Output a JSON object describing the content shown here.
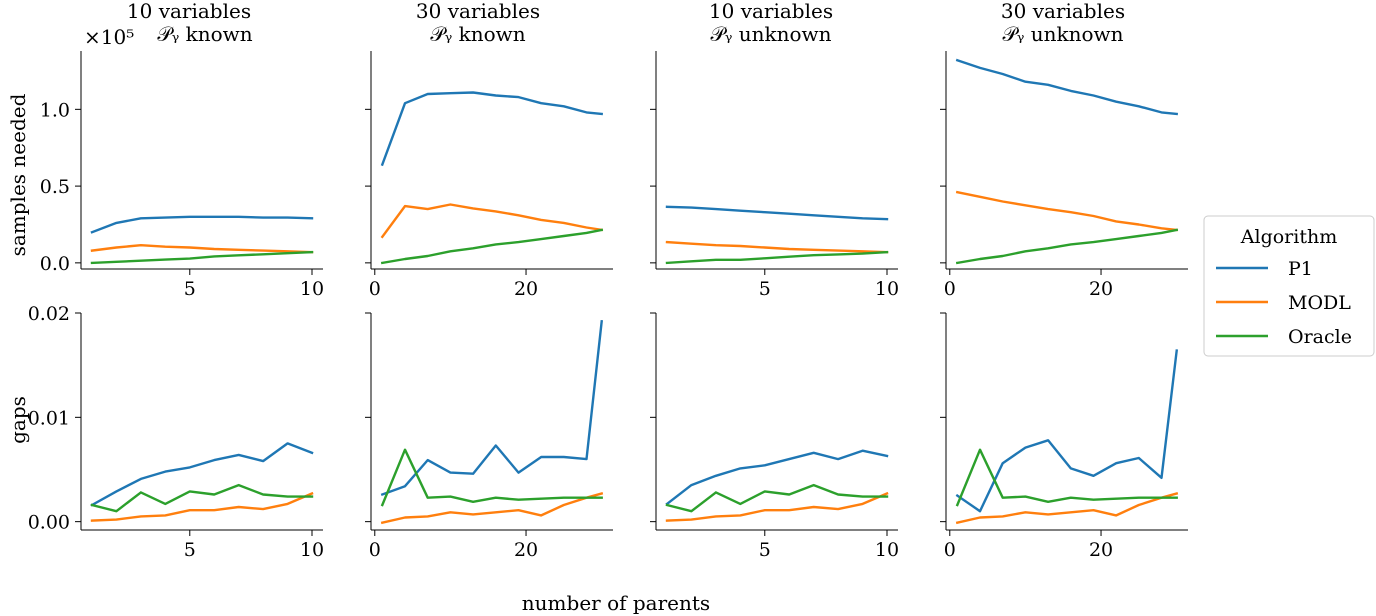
{
  "figure": {
    "xlabel": "number of parents",
    "ylabel_top": "samples needed",
    "ylabel_bottom": "gaps",
    "offset_text": "×10⁵",
    "legend": {
      "title": "Algorithm",
      "entries": [
        {
          "name": "P1",
          "color": "#1f77b4"
        },
        {
          "name": "MODL",
          "color": "#ff7f0e"
        },
        {
          "name": "Oracle",
          "color": "#2ca02c"
        }
      ]
    },
    "columns": [
      {
        "title_line1": "10 variables",
        "title_line2": "𝒫ᵧ known"
      },
      {
        "title_line1": "30 variables",
        "title_line2": "𝒫ᵧ known"
      },
      {
        "title_line1": "10 variables",
        "title_line2": "𝒫ᵧ unknown"
      },
      {
        "title_line1": "30 variables",
        "title_line2": "𝒫ᵧ unknown"
      }
    ]
  },
  "chart_data": [
    {
      "type": "line",
      "row": "samples needed",
      "column": "10 variables, P_Y known",
      "x": [
        1,
        2,
        3,
        4,
        5,
        6,
        7,
        8,
        9,
        10
      ],
      "xlim": [
        0.55,
        10.45
      ],
      "xticks": [
        5,
        10
      ],
      "ylim": [
        -0.04,
        1.38
      ],
      "yticks": [
        0.0,
        0.5,
        1.0
      ],
      "ytick_labels": [
        "0.0",
        "0.5",
        "1.0"
      ],
      "y_unit": "×10^5",
      "series": [
        {
          "name": "P1",
          "values": [
            0.2,
            0.26,
            0.29,
            0.295,
            0.3,
            0.3,
            0.3,
            0.295,
            0.295,
            0.29
          ]
        },
        {
          "name": "MODL",
          "values": [
            0.08,
            0.1,
            0.115,
            0.105,
            0.1,
            0.09,
            0.085,
            0.08,
            0.075,
            0.07
          ]
        },
        {
          "name": "Oracle",
          "values": [
            0.0,
            0.007,
            0.014,
            0.021,
            0.028,
            0.042,
            0.049,
            0.056,
            0.063,
            0.07
          ]
        }
      ]
    },
    {
      "type": "line",
      "row": "samples needed",
      "column": "30 variables, P_Y known",
      "x": [
        1,
        4,
        7,
        10,
        13,
        16,
        19,
        22,
        25,
        28,
        30
      ],
      "xlim": [
        -0.5,
        31.5
      ],
      "xticks": [
        0,
        20
      ],
      "ylim": [
        -0.04,
        1.38
      ],
      "yticks": [
        0.0,
        0.5,
        1.0
      ],
      "ytick_labels": [],
      "series": [
        {
          "name": "P1",
          "values": [
            0.64,
            1.04,
            1.1,
            1.105,
            1.11,
            1.09,
            1.08,
            1.04,
            1.02,
            0.98,
            0.97
          ]
        },
        {
          "name": "MODL",
          "values": [
            0.17,
            0.37,
            0.35,
            0.38,
            0.355,
            0.335,
            0.31,
            0.28,
            0.26,
            0.23,
            0.215
          ]
        },
        {
          "name": "Oracle",
          "values": [
            0.0,
            0.025,
            0.045,
            0.075,
            0.095,
            0.12,
            0.135,
            0.155,
            0.175,
            0.195,
            0.215
          ]
        }
      ]
    },
    {
      "type": "line",
      "row": "samples needed",
      "column": "10 variables, P_Y unknown",
      "x": [
        1,
        2,
        3,
        4,
        5,
        6,
        7,
        8,
        9,
        10
      ],
      "xlim": [
        0.55,
        10.45
      ],
      "xticks": [
        5,
        10
      ],
      "ylim": [
        -0.04,
        1.38
      ],
      "yticks": [
        0.0,
        0.5,
        1.0
      ],
      "ytick_labels": [],
      "series": [
        {
          "name": "P1",
          "values": [
            0.365,
            0.36,
            0.35,
            0.34,
            0.33,
            0.32,
            0.31,
            0.3,
            0.29,
            0.285
          ]
        },
        {
          "name": "MODL",
          "values": [
            0.135,
            0.125,
            0.115,
            0.11,
            0.1,
            0.09,
            0.085,
            0.08,
            0.075,
            0.07
          ]
        },
        {
          "name": "Oracle",
          "values": [
            0.0,
            0.01,
            0.02,
            0.02,
            0.03,
            0.04,
            0.05,
            0.055,
            0.06,
            0.07
          ]
        }
      ]
    },
    {
      "type": "line",
      "row": "samples needed",
      "column": "30 variables, P_Y unknown",
      "x": [
        1,
        4,
        7,
        10,
        13,
        16,
        19,
        22,
        25,
        28,
        30
      ],
      "xlim": [
        -0.5,
        31.5
      ],
      "xticks": [
        0,
        20
      ],
      "ylim": [
        -0.04,
        1.38
      ],
      "yticks": [
        0.0,
        0.5,
        1.0
      ],
      "ytick_labels": [],
      "series": [
        {
          "name": "P1",
          "values": [
            1.32,
            1.27,
            1.23,
            1.18,
            1.16,
            1.12,
            1.09,
            1.05,
            1.02,
            0.98,
            0.97
          ]
        },
        {
          "name": "MODL",
          "values": [
            0.46,
            0.43,
            0.4,
            0.375,
            0.35,
            0.33,
            0.305,
            0.27,
            0.25,
            0.225,
            0.215
          ]
        },
        {
          "name": "Oracle",
          "values": [
            0.0,
            0.025,
            0.045,
            0.075,
            0.095,
            0.12,
            0.135,
            0.155,
            0.175,
            0.195,
            0.215
          ]
        }
      ]
    },
    {
      "type": "line",
      "row": "gaps",
      "column": "10 variables, P_Y known",
      "x": [
        1,
        2,
        3,
        4,
        5,
        6,
        7,
        8,
        9,
        10
      ],
      "xlim": [
        0.55,
        10.45
      ],
      "xticks": [
        5,
        10
      ],
      "ylim": [
        -0.0008,
        0.02
      ],
      "yticks": [
        0.0,
        0.01,
        0.02
      ],
      "ytick_labels": [
        "0.00",
        "0.01",
        "0.02"
      ],
      "series": [
        {
          "name": "P1",
          "values": [
            0.0016,
            0.0029,
            0.0041,
            0.0048,
            0.0052,
            0.0059,
            0.0064,
            0.0058,
            0.0075,
            0.0066
          ]
        },
        {
          "name": "MODL",
          "values": [
            0.0001,
            0.0002,
            0.0005,
            0.0006,
            0.0011,
            0.0011,
            0.0014,
            0.0012,
            0.0017,
            0.0027
          ]
        },
        {
          "name": "Oracle",
          "values": [
            0.0016,
            0.001,
            0.0028,
            0.0017,
            0.0029,
            0.0026,
            0.0035,
            0.0026,
            0.0024,
            0.0024
          ]
        }
      ]
    },
    {
      "type": "line",
      "row": "gaps",
      "column": "30 variables, P_Y known",
      "x": [
        1,
        4,
        7,
        10,
        13,
        16,
        19,
        22,
        25,
        28,
        30
      ],
      "xlim": [
        -0.5,
        31.5
      ],
      "xticks": [
        0,
        20
      ],
      "ylim": [
        -0.0008,
        0.02
      ],
      "yticks": [
        0.0,
        0.01,
        0.02
      ],
      "ytick_labels": [],
      "series": [
        {
          "name": "P1",
          "values": [
            0.0026,
            0.0034,
            0.0059,
            0.0047,
            0.0046,
            0.0073,
            0.0047,
            0.0062,
            0.0062,
            0.006,
            0.0192
          ]
        },
        {
          "name": "MODL",
          "values": [
            -0.0001,
            0.0004,
            0.0005,
            0.0009,
            0.0007,
            0.0009,
            0.0011,
            0.0006,
            0.0016,
            0.0023,
            0.0027
          ]
        },
        {
          "name": "Oracle",
          "values": [
            0.0016,
            0.0069,
            0.0023,
            0.0024,
            0.0019,
            0.0023,
            0.0021,
            0.0022,
            0.0023,
            0.0023,
            0.0023
          ]
        }
      ]
    },
    {
      "type": "line",
      "row": "gaps",
      "column": "10 variables, P_Y unknown",
      "x": [
        1,
        2,
        3,
        4,
        5,
        6,
        7,
        8,
        9,
        10
      ],
      "xlim": [
        0.55,
        10.45
      ],
      "xticks": [
        5,
        10
      ],
      "ylim": [
        -0.0008,
        0.02
      ],
      "yticks": [
        0.0,
        0.01,
        0.02
      ],
      "ytick_labels": [],
      "series": [
        {
          "name": "P1",
          "values": [
            0.0017,
            0.0035,
            0.0044,
            0.0051,
            0.0054,
            0.006,
            0.0066,
            0.006,
            0.0068,
            0.0063
          ]
        },
        {
          "name": "MODL",
          "values": [
            0.0001,
            0.0002,
            0.0005,
            0.0006,
            0.0011,
            0.0011,
            0.0014,
            0.0012,
            0.0017,
            0.0027
          ]
        },
        {
          "name": "Oracle",
          "values": [
            0.0016,
            0.001,
            0.0028,
            0.0017,
            0.0029,
            0.0026,
            0.0035,
            0.0026,
            0.0024,
            0.0024
          ]
        }
      ]
    },
    {
      "type": "line",
      "row": "gaps",
      "column": "30 variables, P_Y unknown",
      "x": [
        1,
        4,
        7,
        10,
        13,
        16,
        19,
        22,
        25,
        28,
        30
      ],
      "xlim": [
        -0.5,
        31.5
      ],
      "xticks": [
        0,
        20
      ],
      "ylim": [
        -0.0008,
        0.02
      ],
      "yticks": [
        0.0,
        0.01,
        0.02
      ],
      "ytick_labels": [],
      "series": [
        {
          "name": "P1",
          "values": [
            0.0025,
            0.001,
            0.0056,
            0.0071,
            0.0078,
            0.0051,
            0.0044,
            0.0056,
            0.0061,
            0.0042,
            0.0164
          ]
        },
        {
          "name": "MODL",
          "values": [
            -0.0001,
            0.0004,
            0.0005,
            0.0009,
            0.0007,
            0.0009,
            0.0011,
            0.0006,
            0.0016,
            0.0023,
            0.0027
          ]
        },
        {
          "name": "Oracle",
          "values": [
            0.0016,
            0.0069,
            0.0023,
            0.0024,
            0.0019,
            0.0023,
            0.0021,
            0.0022,
            0.0023,
            0.0023,
            0.0023
          ]
        }
      ]
    }
  ]
}
